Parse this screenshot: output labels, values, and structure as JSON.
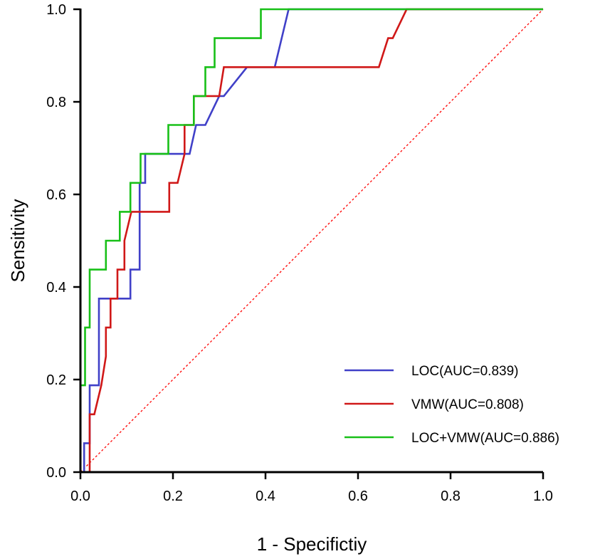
{
  "chart_data": {
    "type": "line",
    "title": "",
    "xlabel": "1 - Specifictiy",
    "ylabel": "Sensitivity",
    "xlim": [
      0,
      1
    ],
    "ylim": [
      0,
      1
    ],
    "xticks": [
      "0.0",
      "0.2",
      "0.4",
      "0.6",
      "0.8",
      "1.0"
    ],
    "yticks": [
      "0.0",
      "0.2",
      "0.4",
      "0.6",
      "0.8",
      "1.0"
    ],
    "grid": false,
    "legend_position": "bottom-right",
    "reference_line": {
      "name": "chance-diagonal",
      "color": "#ff0000",
      "style": "dashed",
      "points": [
        [
          0,
          0
        ],
        [
          1,
          1
        ]
      ]
    },
    "series": [
      {
        "name": "LOC(AUC=0.839)",
        "color": "#4040c8",
        "points": [
          [
            0,
            0
          ],
          [
            0.008,
            0
          ],
          [
            0.008,
            0.0625
          ],
          [
            0.02,
            0.0625
          ],
          [
            0.02,
            0.1875
          ],
          [
            0.04,
            0.1875
          ],
          [
            0.04,
            0.375
          ],
          [
            0.108,
            0.375
          ],
          [
            0.108,
            0.4375
          ],
          [
            0.128,
            0.4375
          ],
          [
            0.128,
            0.625
          ],
          [
            0.14,
            0.625
          ],
          [
            0.14,
            0.6875
          ],
          [
            0.236,
            0.6875
          ],
          [
            0.25,
            0.75
          ],
          [
            0.27,
            0.75
          ],
          [
            0.3,
            0.8125
          ],
          [
            0.31,
            0.8125
          ],
          [
            0.36,
            0.875
          ],
          [
            0.42,
            0.875
          ],
          [
            0.45,
            1
          ],
          [
            1,
            1
          ]
        ]
      },
      {
        "name": "VMW(AUC=0.808)",
        "color": "#d01818",
        "points": [
          [
            0,
            0
          ],
          [
            0.02,
            0
          ],
          [
            0.02,
            0.125
          ],
          [
            0.03,
            0.125
          ],
          [
            0.045,
            0.1875
          ],
          [
            0.055,
            0.25
          ],
          [
            0.055,
            0.3125
          ],
          [
            0.065,
            0.3125
          ],
          [
            0.065,
            0.375
          ],
          [
            0.08,
            0.375
          ],
          [
            0.08,
            0.4375
          ],
          [
            0.095,
            0.4375
          ],
          [
            0.095,
            0.5
          ],
          [
            0.11,
            0.5625
          ],
          [
            0.192,
            0.5625
          ],
          [
            0.192,
            0.625
          ],
          [
            0.21,
            0.625
          ],
          [
            0.225,
            0.6875
          ],
          [
            0.225,
            0.75
          ],
          [
            0.245,
            0.75
          ],
          [
            0.245,
            0.8125
          ],
          [
            0.3,
            0.8125
          ],
          [
            0.31,
            0.875
          ],
          [
            0.645,
            0.875
          ],
          [
            0.665,
            0.9375
          ],
          [
            0.675,
            0.9375
          ],
          [
            0.705,
            1
          ],
          [
            1,
            1
          ]
        ]
      },
      {
        "name": "LOC+VMW(AUC=0.886)",
        "color": "#18c018",
        "points": [
          [
            0,
            0
          ],
          [
            0,
            0.1875
          ],
          [
            0.01,
            0.1875
          ],
          [
            0.01,
            0.3125
          ],
          [
            0.02,
            0.3125
          ],
          [
            0.02,
            0.4375
          ],
          [
            0.04,
            0.4375
          ],
          [
            0.055,
            0.4375
          ],
          [
            0.055,
            0.5
          ],
          [
            0.085,
            0.5
          ],
          [
            0.085,
            0.5625
          ],
          [
            0.108,
            0.5625
          ],
          [
            0.108,
            0.625
          ],
          [
            0.13,
            0.625
          ],
          [
            0.13,
            0.6875
          ],
          [
            0.19,
            0.6875
          ],
          [
            0.19,
            0.75
          ],
          [
            0.245,
            0.75
          ],
          [
            0.245,
            0.8125
          ],
          [
            0.27,
            0.8125
          ],
          [
            0.27,
            0.875
          ],
          [
            0.29,
            0.875
          ],
          [
            0.29,
            0.9375
          ],
          [
            0.39,
            0.9375
          ],
          [
            0.39,
            1
          ],
          [
            1,
            1
          ]
        ]
      }
    ]
  }
}
